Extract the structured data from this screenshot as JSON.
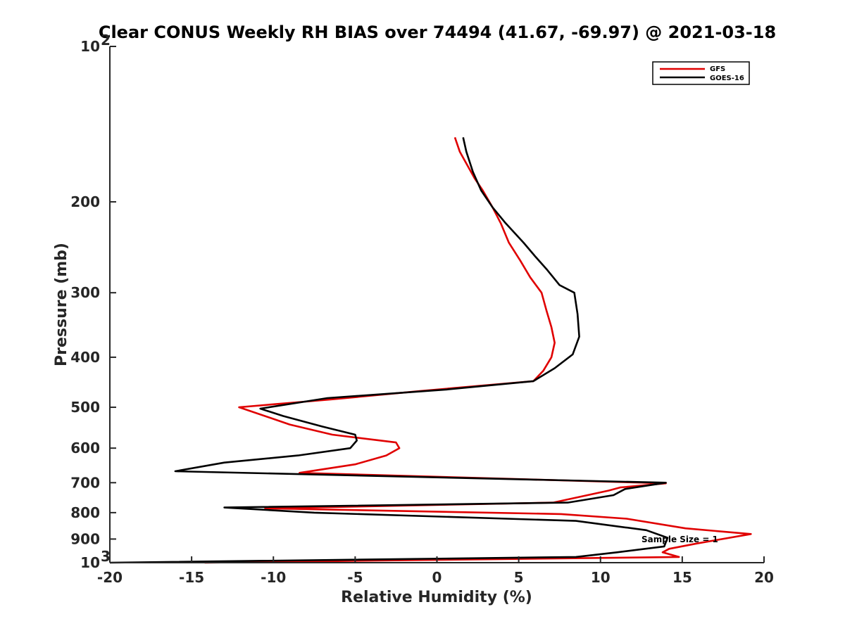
{
  "chart_data": {
    "type": "line",
    "title": "Clear CONUS Weekly RH BIAS over 74494 (41.67, -69.97) @ 2021-03-18",
    "xlabel": "Relative Humidity (%)",
    "ylabel": "Pressure (mb)",
    "xlim": [
      -20,
      20
    ],
    "ylim": [
      100,
      1000
    ],
    "yscale": "log",
    "yreversed": true,
    "x_ticks": [
      -20,
      -15,
      -10,
      -5,
      0,
      5,
      10,
      15,
      20
    ],
    "x_tick_labels": [
      "-20",
      "-15",
      "-10",
      "-5",
      "0",
      "5",
      "10",
      "15",
      "20"
    ],
    "y_ticks": [
      100,
      200,
      300,
      400,
      500,
      600,
      700,
      800,
      900,
      1000
    ],
    "y_tick_labels": [
      {
        "base": "10",
        "exp": "2"
      },
      {
        "text": "200"
      },
      {
        "text": "300"
      },
      {
        "text": "400"
      },
      {
        "text": "500"
      },
      {
        "text": "600"
      },
      {
        "text": "700"
      },
      {
        "text": "800"
      },
      {
        "text": "900"
      },
      {
        "base": "10",
        "exp": "3"
      }
    ],
    "legend_position": "top-right",
    "series": [
      {
        "name": "GFS",
        "color": "#e00000",
        "points": [
          [
            1.1,
            150
          ],
          [
            1.4,
            160
          ],
          [
            2.3,
            180
          ],
          [
            2.8,
            190
          ],
          [
            3.4,
            205
          ],
          [
            3.9,
            220
          ],
          [
            4.4,
            240
          ],
          [
            5.1,
            260
          ],
          [
            5.7,
            280
          ],
          [
            6.4,
            300
          ],
          [
            6.7,
            325
          ],
          [
            7.0,
            350
          ],
          [
            7.2,
            375
          ],
          [
            7.0,
            400
          ],
          [
            6.5,
            425
          ],
          [
            5.9,
            445
          ],
          [
            -1.0,
            465
          ],
          [
            -6.5,
            483
          ],
          [
            -12.1,
            500
          ],
          [
            -9.0,
            540
          ],
          [
            -6.4,
            565
          ],
          [
            -2.5,
            585
          ],
          [
            -2.3,
            600
          ],
          [
            -3.1,
            620
          ],
          [
            -5.0,
            645
          ],
          [
            -8.4,
            670
          ],
          [
            14.0,
            702
          ],
          [
            11.2,
            715
          ],
          [
            10.5,
            725
          ],
          [
            7.1,
            765
          ],
          [
            -10.5,
            785
          ],
          [
            7.6,
            805
          ],
          [
            11.6,
            822
          ],
          [
            15.2,
            858
          ],
          [
            19.2,
            880
          ],
          [
            15.9,
            918
          ],
          [
            14.2,
            940
          ],
          [
            13.8,
            955
          ],
          [
            14.8,
            975
          ],
          [
            -14.2,
            1000
          ]
        ]
      },
      {
        "name": "GOES-16",
        "color": "#000000",
        "points": [
          [
            1.6,
            150
          ],
          [
            1.8,
            160
          ],
          [
            2.2,
            175
          ],
          [
            2.7,
            190
          ],
          [
            3.4,
            205
          ],
          [
            4.2,
            220
          ],
          [
            5.3,
            240
          ],
          [
            6.0,
            255
          ],
          [
            6.7,
            270
          ],
          [
            7.5,
            290
          ],
          [
            8.4,
            300
          ],
          [
            8.6,
            330
          ],
          [
            8.7,
            365
          ],
          [
            8.3,
            395
          ],
          [
            7.2,
            420
          ],
          [
            5.9,
            445
          ],
          [
            0.6,
            462
          ],
          [
            -6.7,
            480
          ],
          [
            -10.8,
            503
          ],
          [
            -9.4,
            520
          ],
          [
            -7.0,
            545
          ],
          [
            -5.0,
            565
          ],
          [
            -4.9,
            580
          ],
          [
            -5.3,
            600
          ],
          [
            -8.5,
            620
          ],
          [
            -13.0,
            640
          ],
          [
            -16.0,
            665
          ],
          [
            14.0,
            700
          ],
          [
            11.5,
            720
          ],
          [
            10.8,
            740
          ],
          [
            8.0,
            765
          ],
          [
            -13.0,
            782
          ],
          [
            -7.5,
            800
          ],
          [
            8.5,
            830
          ],
          [
            12.8,
            865
          ],
          [
            14.1,
            895
          ],
          [
            13.9,
            930
          ],
          [
            11.0,
            955
          ],
          [
            8.5,
            975
          ],
          [
            -20.0,
            1000
          ]
        ]
      }
    ],
    "annotation": "Sample Size = 1"
  }
}
